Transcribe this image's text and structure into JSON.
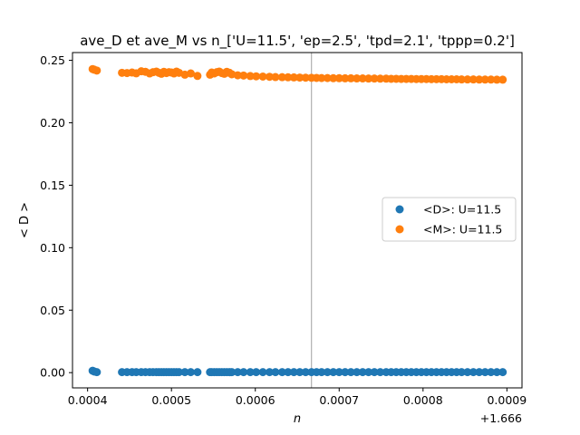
{
  "chart_data": {
    "type": "scatter",
    "title": "ave_D et ave_M vs n_['U=11.5', 'ep=2.5', 'tpd=2.1', 'tppp=0.2']",
    "xlabel": "n",
    "ylabel": "< D >",
    "x_offset_label": "+1.666",
    "xlim": [
      0.000382,
      0.000918
    ],
    "ylim": [
      -0.0122,
      0.2562
    ],
    "x_ticks": [
      0.0004,
      0.0005,
      0.0006,
      0.0007,
      0.0008,
      0.0009
    ],
    "x_tick_labels": [
      "0.0004",
      "0.0005",
      "0.0006",
      "0.0007",
      "0.0008",
      "0.0009"
    ],
    "y_ticks": [
      0.0,
      0.05,
      0.1,
      0.15,
      0.2,
      0.25
    ],
    "y_tick_labels": [
      "0.00",
      "0.05",
      "0.10",
      "0.15",
      "0.20",
      "0.25"
    ],
    "vline_x": 0.000667,
    "legend_position": "center right",
    "grid": false,
    "series": [
      {
        "name": "<D>: U=11.5",
        "color": "#1f77b4",
        "x": [
          0.000406,
          0.000408,
          0.000411,
          0.000441,
          0.000447,
          0.000453,
          0.000458,
          0.000464,
          0.000469,
          0.000474,
          0.000478,
          0.000482,
          0.000485,
          0.000488,
          0.000491,
          0.000494,
          0.000497,
          0.0005,
          0.000503,
          0.000506,
          0.000509,
          0.000516,
          0.000523,
          0.000531,
          0.000546,
          0.000548,
          0.000551,
          0.000554,
          0.000557,
          0.00056,
          0.000563,
          0.000566,
          0.000569,
          0.000572,
          0.000579,
          0.000586,
          0.000594,
          0.000601,
          0.000609,
          0.000617,
          0.000624,
          0.000632,
          0.000639,
          0.000646,
          0.000653,
          0.00066,
          0.000667,
          0.000673,
          0.000679,
          0.000686,
          0.000693,
          0.0007,
          0.000707,
          0.000714,
          0.000721,
          0.000728,
          0.000735,
          0.000742,
          0.000749,
          0.000756,
          0.000762,
          0.000768,
          0.000774,
          0.00078,
          0.000786,
          0.000792,
          0.000798,
          0.000804,
          0.00081,
          0.000816,
          0.000822,
          0.000828,
          0.000834,
          0.00084,
          0.000846,
          0.000853,
          0.00086,
          0.000867,
          0.000874,
          0.000881,
          0.000888,
          0.000895
        ],
        "y": [
          0.0015,
          0.0009,
          0.0004,
          0.0004,
          0.0004,
          0.0004,
          0.0004,
          0.0004,
          0.0004,
          0.0004,
          0.0004,
          0.0004,
          0.0004,
          0.0004,
          0.0004,
          0.0004,
          0.0004,
          0.0004,
          0.0004,
          0.0004,
          0.0004,
          0.0004,
          0.0004,
          0.0004,
          0.0004,
          0.0004,
          0.0004,
          0.0004,
          0.0004,
          0.0004,
          0.0004,
          0.0004,
          0.0004,
          0.0004,
          0.0004,
          0.0004,
          0.0004,
          0.0004,
          0.0004,
          0.0004,
          0.0004,
          0.0004,
          0.0004,
          0.0004,
          0.0004,
          0.0004,
          0.0004,
          0.0004,
          0.0004,
          0.0004,
          0.0004,
          0.0004,
          0.0004,
          0.0004,
          0.0004,
          0.0004,
          0.0004,
          0.0004,
          0.0004,
          0.0004,
          0.0004,
          0.0004,
          0.0004,
          0.0004,
          0.0004,
          0.0004,
          0.0004,
          0.0004,
          0.0004,
          0.0004,
          0.0004,
          0.0004,
          0.0004,
          0.0004,
          0.0004,
          0.0004,
          0.0004,
          0.0004,
          0.0004,
          0.0004,
          0.0004,
          0.0004
        ]
      },
      {
        "name": "<M>: U=11.5",
        "color": "#ff7f0e",
        "x": [
          0.000406,
          0.000408,
          0.000411,
          0.000441,
          0.000447,
          0.000453,
          0.000458,
          0.000464,
          0.000469,
          0.000474,
          0.000478,
          0.000482,
          0.000485,
          0.000488,
          0.000491,
          0.000494,
          0.000497,
          0.0005,
          0.000503,
          0.000506,
          0.000509,
          0.000516,
          0.000523,
          0.000531,
          0.000546,
          0.000548,
          0.000551,
          0.000554,
          0.000557,
          0.00056,
          0.000563,
          0.000566,
          0.000569,
          0.000572,
          0.000579,
          0.000586,
          0.000594,
          0.000601,
          0.000609,
          0.000617,
          0.000624,
          0.000632,
          0.000639,
          0.000646,
          0.000653,
          0.00066,
          0.000667,
          0.000673,
          0.000679,
          0.000686,
          0.000693,
          0.0007,
          0.000707,
          0.000714,
          0.000721,
          0.000728,
          0.000735,
          0.000742,
          0.000749,
          0.000756,
          0.000762,
          0.000768,
          0.000774,
          0.00078,
          0.000786,
          0.000792,
          0.000798,
          0.000804,
          0.00081,
          0.000816,
          0.000822,
          0.000828,
          0.000834,
          0.00084,
          0.000846,
          0.000853,
          0.00086,
          0.000867,
          0.000874,
          0.000881,
          0.000888,
          0.000895
        ],
        "y": [
          0.243,
          0.2425,
          0.2418,
          0.24,
          0.2398,
          0.2402,
          0.2396,
          0.2412,
          0.2408,
          0.2395,
          0.2405,
          0.241,
          0.24,
          0.2392,
          0.2408,
          0.2398,
          0.2405,
          0.2402,
          0.2395,
          0.241,
          0.24,
          0.2385,
          0.2395,
          0.2375,
          0.2385,
          0.2402,
          0.2395,
          0.2405,
          0.241,
          0.2398,
          0.2392,
          0.2408,
          0.24,
          0.2388,
          0.238,
          0.2378,
          0.2374,
          0.2372,
          0.237,
          0.2368,
          0.2366,
          0.2365,
          0.2364,
          0.2363,
          0.2362,
          0.2361,
          0.236,
          0.2359,
          0.2358,
          0.2358,
          0.2357,
          0.2357,
          0.2356,
          0.2356,
          0.2355,
          0.2355,
          0.2354,
          0.2354,
          0.2353,
          0.2353,
          0.2352,
          0.2352,
          0.2351,
          0.2351,
          0.2351,
          0.235,
          0.235,
          0.235,
          0.2349,
          0.2349,
          0.2349,
          0.2348,
          0.2348,
          0.2348,
          0.2347,
          0.2347,
          0.2347,
          0.2346,
          0.2346,
          0.2346,
          0.2345,
          0.2345
        ]
      }
    ]
  }
}
